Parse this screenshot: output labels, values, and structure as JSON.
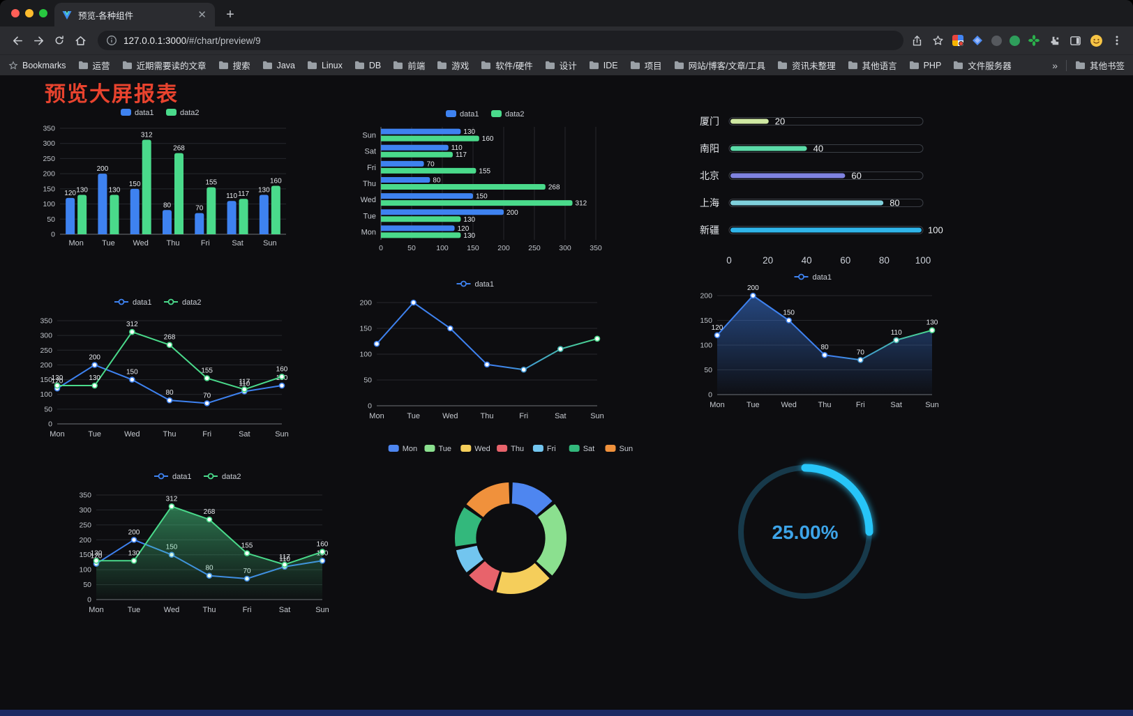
{
  "browser": {
    "tab_title": "预览-各种组件",
    "new_tab_label": "+",
    "url_host": "127.0.0.1:3000",
    "url_path": "/#/chart/preview/9",
    "bookmarks_bar": {
      "label": "Bookmarks",
      "items": [
        "运营",
        "近期需要读的文章",
        "搜索",
        "Java",
        "Linux",
        "DB",
        "前端",
        "游戏",
        "软件/硬件",
        "设计",
        "IDE",
        "项目",
        "网站/博客/文章/工具",
        "资讯未整理",
        "其他语言",
        "PHP",
        "文件服务器"
      ],
      "overflow": "»",
      "other": "其他书签"
    }
  },
  "page": {
    "title": "预览大屏报表"
  },
  "colors": {
    "series_blue": "#3E82F0",
    "series_green": "#4ADA8B",
    "title_red": "#E8432E",
    "gauge_cyan": "#27C5F8",
    "background": "#0D0D10"
  },
  "chart_data": [
    {
      "id": "grouped-bar",
      "type": "bar",
      "categories": [
        "Mon",
        "Tue",
        "Wed",
        "Thu",
        "Fri",
        "Sat",
        "Sun"
      ],
      "series": [
        {
          "name": "data1",
          "color": "#3E82F0",
          "values": [
            120,
            200,
            150,
            80,
            70,
            110,
            130
          ]
        },
        {
          "name": "data2",
          "color": "#4ADA8B",
          "values": [
            130,
            130,
            312,
            268,
            155,
            117,
            160
          ]
        }
      ],
      "ylim": [
        0,
        350
      ],
      "ystep": 50,
      "legend_position": "top",
      "grid": true,
      "value_labels": true
    },
    {
      "id": "horizontal-bar",
      "type": "bar-horizontal",
      "categories": [
        "Mon",
        "Tue",
        "Wed",
        "Thu",
        "Fri",
        "Sat",
        "Sun"
      ],
      "series": [
        {
          "name": "data1",
          "color": "#3E82F0",
          "values": [
            120,
            200,
            150,
            80,
            70,
            110,
            130
          ]
        },
        {
          "name": "data2",
          "color": "#4ADA8B",
          "values": [
            130,
            130,
            312,
            268,
            155,
            117,
            160
          ]
        }
      ],
      "xlim": [
        0,
        350
      ],
      "xstep": 50,
      "legend_position": "top",
      "grid": true,
      "value_labels": true
    },
    {
      "id": "city-progress",
      "type": "progress",
      "max": 100,
      "rows": [
        {
          "label": "厦门",
          "value": 20,
          "color": "#CFE8A2"
        },
        {
          "label": "南阳",
          "value": 40,
          "color": "#5BDBA8"
        },
        {
          "label": "北京",
          "value": 60,
          "color": "#7F83E0"
        },
        {
          "label": "上海",
          "value": 80,
          "color": "#7FD0DC"
        },
        {
          "label": "新疆",
          "value": 100,
          "color": "#2FB5EA"
        }
      ],
      "xticks": [
        0,
        20,
        40,
        60,
        80,
        100
      ]
    },
    {
      "id": "line-two-series",
      "type": "line",
      "categories": [
        "Mon",
        "Tue",
        "Wed",
        "Thu",
        "Fri",
        "Sat",
        "Sun"
      ],
      "series": [
        {
          "name": "data1",
          "color": "#3E82F0",
          "values": [
            120,
            200,
            150,
            80,
            70,
            110,
            130
          ]
        },
        {
          "name": "data2",
          "color": "#4ADA8B",
          "values": [
            130,
            130,
            312,
            268,
            155,
            117,
            160
          ]
        }
      ],
      "ylim": [
        0,
        350
      ],
      "ystep": 50,
      "value_labels": true
    },
    {
      "id": "line-gradient",
      "type": "line",
      "categories": [
        "Mon",
        "Tue",
        "Wed",
        "Thu",
        "Fri",
        "Sat",
        "Sun"
      ],
      "series": [
        {
          "name": "data1",
          "color": "#3E82F0",
          "gradient": [
            "#3E82F0",
            "#4ADA8B"
          ],
          "values": [
            120,
            200,
            150,
            80,
            70,
            110,
            130
          ]
        }
      ],
      "ylim": [
        0,
        200
      ],
      "ystep": 50,
      "value_labels": false
    },
    {
      "id": "line-area",
      "type": "line",
      "categories": [
        "Mon",
        "Tue",
        "Wed",
        "Thu",
        "Fri",
        "Sat",
        "Sun"
      ],
      "series": [
        {
          "name": "data1",
          "color": "#3E82F0",
          "gradient": [
            "#3E82F0",
            "#4ADA8B"
          ],
          "area": true,
          "values": [
            120,
            200,
            150,
            80,
            70,
            110,
            130
          ]
        }
      ],
      "ylim": [
        0,
        200
      ],
      "ystep": 50,
      "value_labels": true
    },
    {
      "id": "line-two-series-area",
      "type": "line",
      "categories": [
        "Mon",
        "Tue",
        "Wed",
        "Thu",
        "Fri",
        "Sat",
        "Sun"
      ],
      "series": [
        {
          "name": "data1",
          "color": "#3E82F0",
          "values": [
            120,
            200,
            150,
            80,
            70,
            110,
            130
          ]
        },
        {
          "name": "data2",
          "color": "#4ADA8B",
          "area": true,
          "values": [
            130,
            130,
            312,
            268,
            155,
            117,
            160
          ]
        }
      ],
      "ylim": [
        0,
        350
      ],
      "ystep": 50,
      "value_labels": true
    },
    {
      "id": "donut-week",
      "type": "pie",
      "categories": [
        "Mon",
        "Tue",
        "Wed",
        "Thu",
        "Fri",
        "Sat",
        "Sun"
      ],
      "values": [
        120,
        200,
        150,
        80,
        70,
        110,
        130
      ],
      "colors": [
        "#4E86F0",
        "#8BE08F",
        "#F5CE5B",
        "#E8636B",
        "#72C5EF",
        "#33B87C",
        "#F0913C"
      ],
      "inner_radius_ratio": 0.62,
      "legend_position": "top"
    },
    {
      "id": "ring-gauge",
      "type": "gauge",
      "value": 25,
      "label": "25.00%",
      "color": "#27C5F8",
      "track_color": "#17394A",
      "text_color": "#3DA4E8"
    }
  ]
}
